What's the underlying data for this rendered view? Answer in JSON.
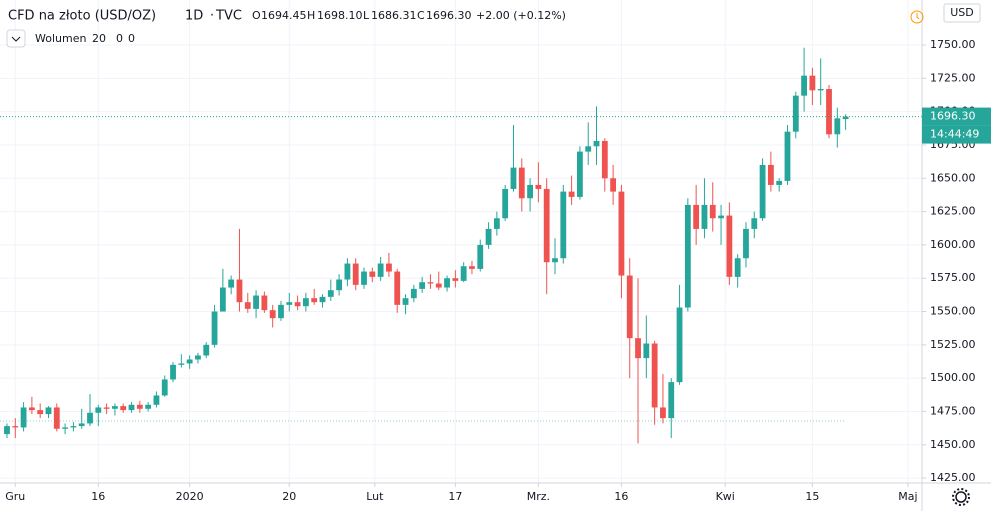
{
  "chart_data": {
    "type": "candlestick",
    "title": "CFD na złoto (USD/OZ)",
    "interval": "1D",
    "source": "TVC",
    "header": {
      "o_label": "O",
      "open": "1694.45",
      "h_label": "H",
      "high": "1698.10",
      "l_label": "L",
      "low": "1686.31",
      "c_label": "C",
      "close": "1696.30",
      "change": "+2.00 (+0.12%)"
    },
    "volume_legend": {
      "name": "Wolumen",
      "length": "20",
      "v1": "0",
      "v2": "0"
    },
    "currency": "USD",
    "last_price": {
      "value": 1696.3,
      "label": "1696.30"
    },
    "countdown": "14:44:49",
    "up_color": "#26a69a",
    "down_color": "#ef5350",
    "ylim": [
      1421.3,
      1783.8
    ],
    "yticks": [
      {
        "value": 1425,
        "label": "1425.00"
      },
      {
        "value": 1450,
        "label": "1450.00"
      },
      {
        "value": 1475,
        "label": "1475.00"
      },
      {
        "value": 1500,
        "label": "1500.00"
      },
      {
        "value": 1525,
        "label": "1525.00"
      },
      {
        "value": 1550,
        "label": "1550.00"
      },
      {
        "value": 1575,
        "label": "1575.00"
      },
      {
        "value": 1600,
        "label": "1600.00"
      },
      {
        "value": 1625,
        "label": "1625.00"
      },
      {
        "value": 1650,
        "label": "1650.00"
      },
      {
        "value": 1675,
        "label": "1675.00"
      },
      {
        "value": 1700,
        "label": "1700.00"
      },
      {
        "value": 1725,
        "label": "1725.00"
      },
      {
        "value": 1750,
        "label": "1750.00"
      }
    ],
    "xlim": [
      -0.84,
      110.2
    ],
    "xticks": [
      {
        "value": 1,
        "label": "Gru"
      },
      {
        "value": 11,
        "label": "16"
      },
      {
        "value": 22,
        "label": "2020"
      },
      {
        "value": 34,
        "label": "20"
      },
      {
        "value": 44.3,
        "label": "Lut"
      },
      {
        "value": 54,
        "label": "17"
      },
      {
        "value": 64,
        "label": "Mrz."
      },
      {
        "value": 74,
        "label": "16"
      },
      {
        "value": 86.5,
        "label": "Kwi"
      },
      {
        "value": 97,
        "label": "15"
      },
      {
        "value": 108.5,
        "label": "Maj"
      }
    ],
    "candles": [
      [
        1458,
        1466,
        1455,
        1464
      ],
      [
        1464,
        1470,
        1455,
        1463
      ],
      [
        1463,
        1482,
        1460,
        1478
      ],
      [
        1478,
        1486,
        1473,
        1476
      ],
      [
        1476,
        1481,
        1470,
        1473
      ],
      [
        1473,
        1479,
        1470,
        1478
      ],
      [
        1478,
        1481,
        1460,
        1462
      ],
      [
        1462,
        1466,
        1458,
        1463
      ],
      [
        1463,
        1467,
        1460,
        1464
      ],
      [
        1464,
        1477,
        1462,
        1466
      ],
      [
        1466,
        1488,
        1464,
        1474
      ],
      [
        1474,
        1480,
        1464,
        1478
      ],
      [
        1478,
        1481,
        1473,
        1477
      ],
      [
        1477,
        1481,
        1472,
        1479
      ],
      [
        1479,
        1481,
        1474,
        1476
      ],
      [
        1476,
        1482,
        1474,
        1480
      ],
      [
        1480,
        1483,
        1474,
        1477
      ],
      [
        1477,
        1482,
        1475,
        1480
      ],
      [
        1480,
        1490,
        1478,
        1487
      ],
      [
        1487,
        1502,
        1486,
        1499
      ],
      [
        1499,
        1512,
        1497,
        1510
      ],
      [
        1510,
        1518,
        1508,
        1511
      ],
      [
        1511,
        1517,
        1507,
        1514
      ],
      [
        1514,
        1519,
        1511,
        1517
      ],
      [
        1517,
        1527,
        1515,
        1525
      ],
      [
        1525,
        1555,
        1523,
        1550
      ],
      [
        1550,
        1582,
        1550,
        1568
      ],
      [
        1568,
        1577,
        1563,
        1574
      ],
      [
        1574,
        1612,
        1550,
        1557
      ],
      [
        1557,
        1564,
        1549,
        1552
      ],
      [
        1552,
        1566,
        1545,
        1562
      ],
      [
        1562,
        1565,
        1549,
        1551
      ],
      [
        1551,
        1555,
        1538,
        1545
      ],
      [
        1545,
        1558,
        1543,
        1555
      ],
      [
        1555,
        1564,
        1550,
        1557
      ],
      [
        1557,
        1562,
        1551,
        1554
      ],
      [
        1554,
        1564,
        1550,
        1560
      ],
      [
        1560,
        1567,
        1555,
        1557
      ],
      [
        1557,
        1563,
        1553,
        1561
      ],
      [
        1561,
        1574,
        1558,
        1566
      ],
      [
        1566,
        1578,
        1562,
        1574
      ],
      [
        1574,
        1590,
        1569,
        1586
      ],
      [
        1586,
        1590,
        1566,
        1570
      ],
      [
        1570,
        1583,
        1567,
        1580
      ],
      [
        1580,
        1583,
        1572,
        1576
      ],
      [
        1576,
        1591,
        1573,
        1586
      ],
      [
        1586,
        1594,
        1576,
        1580
      ],
      [
        1580,
        1582,
        1549,
        1555
      ],
      [
        1555,
        1563,
        1548,
        1560
      ],
      [
        1560,
        1570,
        1557,
        1567
      ],
      [
        1567,
        1576,
        1564,
        1572
      ],
      [
        1572,
        1578,
        1567,
        1571
      ],
      [
        1571,
        1580,
        1566,
        1568
      ],
      [
        1568,
        1577,
        1565,
        1575
      ],
      [
        1575,
        1581,
        1568,
        1573
      ],
      [
        1573,
        1587,
        1572,
        1584
      ],
      [
        1584,
        1588,
        1578,
        1582
      ],
      [
        1582,
        1604,
        1580,
        1600
      ],
      [
        1600,
        1617,
        1597,
        1612
      ],
      [
        1612,
        1625,
        1607,
        1620
      ],
      [
        1620,
        1645,
        1618,
        1642
      ],
      [
        1642,
        1690,
        1640,
        1658
      ],
      [
        1658,
        1665,
        1625,
        1635
      ],
      [
        1635,
        1650,
        1625,
        1645
      ],
      [
        1645,
        1662,
        1632,
        1642
      ],
      [
        1642,
        1650,
        1563,
        1587
      ],
      [
        1587,
        1605,
        1578,
        1590
      ],
      [
        1590,
        1645,
        1586,
        1640
      ],
      [
        1640,
        1652,
        1630,
        1636
      ],
      [
        1636,
        1674,
        1634,
        1670
      ],
      [
        1670,
        1692,
        1660,
        1674
      ],
      [
        1674,
        1704,
        1660,
        1678
      ],
      [
        1678,
        1680,
        1640,
        1650
      ],
      [
        1650,
        1660,
        1630,
        1640
      ],
      [
        1640,
        1645,
        1560,
        1577
      ],
      [
        1577,
        1590,
        1500,
        1530
      ],
      [
        1530,
        1575,
        1451,
        1515
      ],
      [
        1515,
        1547,
        1500,
        1526
      ],
      [
        1526,
        1528,
        1465,
        1478
      ],
      [
        1478,
        1503,
        1466,
        1470
      ],
      [
        1470,
        1500,
        1455,
        1497
      ],
      [
        1497,
        1570,
        1495,
        1553
      ],
      [
        1553,
        1635,
        1550,
        1630
      ],
      [
        1630,
        1645,
        1600,
        1612
      ],
      [
        1612,
        1650,
        1605,
        1630
      ],
      [
        1630,
        1647,
        1610,
        1620
      ],
      [
        1620,
        1630,
        1600,
        1622
      ],
      [
        1622,
        1632,
        1570,
        1576
      ],
      [
        1576,
        1593,
        1568,
        1590
      ],
      [
        1590,
        1617,
        1583,
        1612
      ],
      [
        1612,
        1625,
        1605,
        1620
      ],
      [
        1620,
        1665,
        1618,
        1660
      ],
      [
        1660,
        1670,
        1640,
        1645
      ],
      [
        1645,
        1650,
        1640,
        1648
      ],
      [
        1648,
        1690,
        1645,
        1685
      ],
      [
        1685,
        1715,
        1680,
        1712
      ],
      [
        1712,
        1748,
        1700,
        1727
      ],
      [
        1727,
        1733,
        1705,
        1716
      ],
      [
        1716,
        1740,
        1705,
        1717
      ],
      [
        1717,
        1720,
        1680,
        1683
      ],
      [
        1683,
        1703,
        1673,
        1695
      ],
      [
        1694.45,
        1698.1,
        1686.31,
        1696.3
      ]
    ]
  }
}
